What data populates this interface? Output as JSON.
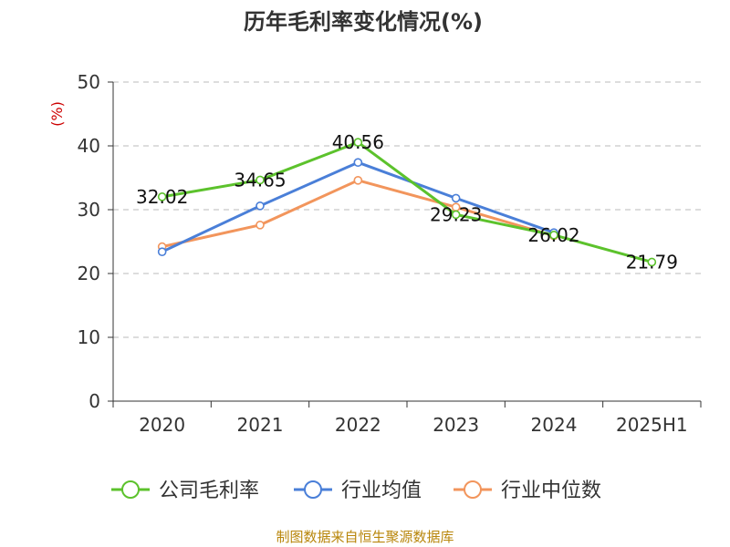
{
  "colors": {
    "unit_label": "#cc0000",
    "source": "#b8860b",
    "axis": "#333333",
    "grid": "#bbbbbb"
  },
  "chart_data": {
    "type": "line",
    "title": "历年毛利率变化情况(%)",
    "unit_label": "(%)",
    "categories": [
      "2020",
      "2021",
      "2022",
      "2023",
      "2024",
      "2025H1"
    ],
    "y_ticks": [
      "0",
      "10",
      "20",
      "30",
      "40",
      "50"
    ],
    "ylim": [
      0,
      50
    ],
    "grid": true,
    "legend_position": "bottom",
    "series": [
      {
        "name": "公司毛利率",
        "color": "#5cc22c",
        "values": [
          32.02,
          34.65,
          40.56,
          29.23,
          26.02,
          21.79
        ],
        "labels": [
          "32.02",
          "34.65",
          "40.56",
          "29.23",
          "26.02",
          "21.79"
        ]
      },
      {
        "name": "行业均值",
        "color": "#4a7fd8",
        "values": [
          23.4,
          30.6,
          37.4,
          31.8,
          26.4,
          null
        ]
      },
      {
        "name": "行业中位数",
        "color": "#f2955c",
        "values": [
          24.2,
          27.6,
          34.6,
          30.4,
          25.9,
          null
        ]
      }
    ],
    "source": "制图数据来自恒生聚源数据库"
  }
}
